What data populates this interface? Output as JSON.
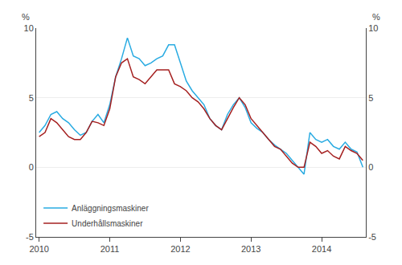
{
  "chart_data": {
    "type": "line",
    "categories": [
      "2010",
      null,
      null,
      null,
      null,
      null,
      null,
      null,
      null,
      null,
      null,
      null,
      "2011",
      null,
      null,
      null,
      null,
      null,
      null,
      null,
      null,
      null,
      null,
      null,
      "2012",
      null,
      null,
      null,
      null,
      null,
      null,
      null,
      null,
      null,
      null,
      null,
      "2013",
      null,
      null,
      null,
      null,
      null,
      null,
      null,
      null,
      null,
      null,
      null,
      "2014",
      null,
      null,
      null,
      null,
      null,
      null,
      null
    ],
    "series": [
      {
        "name": "Anläggningsmaskiner",
        "color": "#29ABE2",
        "values": [
          2.5,
          3.0,
          3.8,
          4.0,
          3.5,
          3.2,
          2.7,
          2.3,
          2.5,
          3.3,
          3.8,
          3.2,
          4.5,
          6.5,
          7.8,
          9.3,
          8.0,
          7.8,
          7.3,
          7.5,
          7.8,
          8.0,
          8.8,
          8.8,
          7.5,
          6.2,
          5.5,
          5.0,
          4.5,
          3.5,
          3.0,
          2.7,
          3.8,
          4.5,
          5.0,
          4.3,
          3.2,
          2.8,
          2.5,
          2.0,
          1.6,
          1.3,
          1.0,
          0.5,
          0.0,
          -0.5,
          2.5,
          2.0,
          1.8,
          2.0,
          1.5,
          1.3,
          1.8,
          1.3,
          1.1,
          0.0
        ]
      },
      {
        "name": "Underhållsmaskiner",
        "color": "#A52020",
        "values": [
          2.2,
          2.5,
          3.5,
          3.2,
          2.7,
          2.2,
          2.0,
          2.0,
          2.5,
          3.3,
          3.2,
          3.0,
          4.2,
          6.5,
          7.5,
          7.8,
          6.5,
          6.3,
          6.0,
          6.5,
          7.0,
          7.0,
          7.0,
          6.0,
          5.8,
          5.5,
          5.0,
          4.7,
          4.2,
          3.5,
          3.0,
          2.7,
          3.5,
          4.3,
          5.0,
          4.5,
          3.5,
          3.0,
          2.5,
          2.0,
          1.5,
          1.3,
          0.8,
          0.3,
          0.0,
          0.0,
          1.8,
          1.5,
          1.0,
          1.2,
          0.8,
          0.6,
          1.5,
          1.2,
          1.0,
          0.5
        ]
      }
    ],
    "ylim": [
      -5,
      10
    ],
    "yticks": [
      -5,
      0,
      5,
      10
    ],
    "y2lim": [
      -5,
      10
    ],
    "y2ticks": [
      -5,
      0,
      5,
      10
    ],
    "annotations": [
      {
        "text": "%",
        "axis": "y"
      },
      {
        "text": "%",
        "axis": "y2"
      }
    ],
    "grid": true,
    "legend": "lower left"
  }
}
